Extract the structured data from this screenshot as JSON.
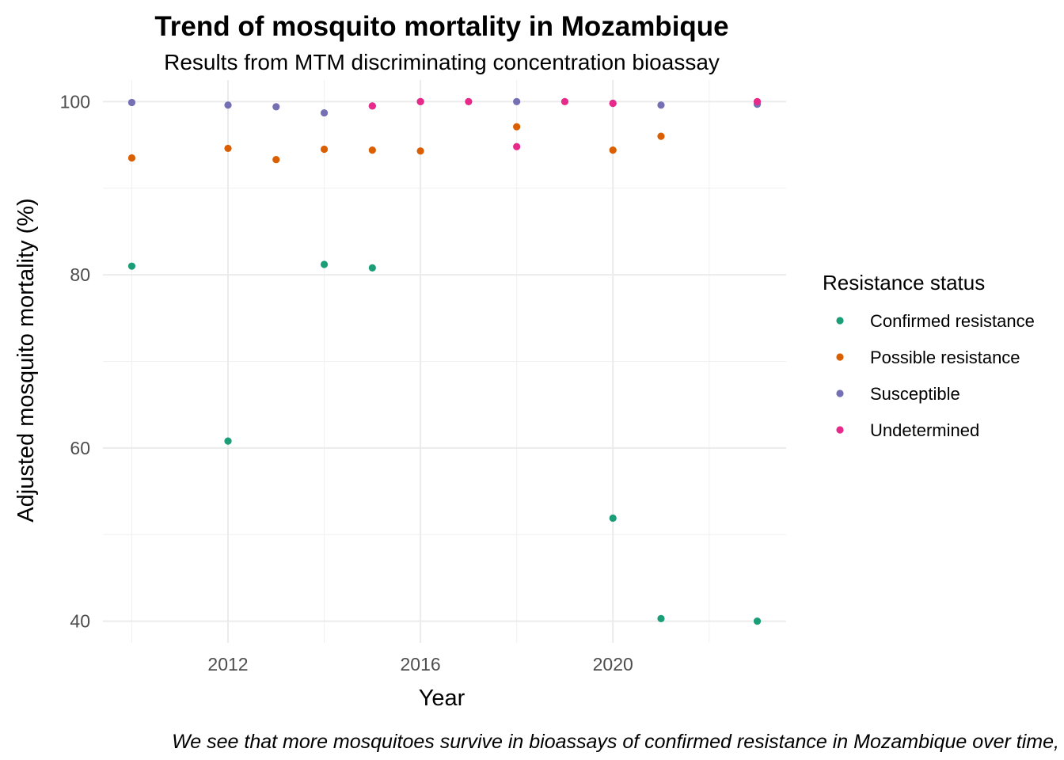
{
  "chart_data": {
    "type": "scatter",
    "title": "Trend of mosquito mortality in Mozambique",
    "subtitle": "Results from MTM discriminating concentration bioassay",
    "xlabel": "Year",
    "ylabel": "Adjusted mosquito mortality (%)",
    "caption": "We see that more mosquitoes survive in bioassays of confirmed resistance in Mozambique over time,",
    "xlim": [
      2009.4,
      2023.6
    ],
    "ylim": [
      37.5,
      102.5
    ],
    "x_ticks": [
      2012,
      2016,
      2020
    ],
    "y_ticks": [
      40,
      60,
      80,
      100
    ],
    "grid": true,
    "legend": {
      "title": "Resistance status",
      "position": "right"
    },
    "series": [
      {
        "name": "Confirmed resistance",
        "color": "#1B9E77",
        "points": [
          {
            "x": 2010,
            "y": 81.0
          },
          {
            "x": 2012,
            "y": 60.8
          },
          {
            "x": 2014,
            "y": 81.2
          },
          {
            "x": 2015,
            "y": 80.8
          },
          {
            "x": 2020,
            "y": 51.9
          },
          {
            "x": 2021,
            "y": 40.3
          },
          {
            "x": 2023,
            "y": 40.0
          }
        ]
      },
      {
        "name": "Possible resistance",
        "color": "#D95F02",
        "points": [
          {
            "x": 2010,
            "y": 93.5
          },
          {
            "x": 2012,
            "y": 94.6
          },
          {
            "x": 2013,
            "y": 93.3
          },
          {
            "x": 2014,
            "y": 94.5
          },
          {
            "x": 2015,
            "y": 94.4
          },
          {
            "x": 2016,
            "y": 94.3
          },
          {
            "x": 2018,
            "y": 97.1
          },
          {
            "x": 2020,
            "y": 94.4
          },
          {
            "x": 2021,
            "y": 96.0
          }
        ]
      },
      {
        "name": "Susceptible",
        "color": "#7570B3",
        "points": [
          {
            "x": 2010,
            "y": 99.9
          },
          {
            "x": 2012,
            "y": 99.6
          },
          {
            "x": 2013,
            "y": 99.4
          },
          {
            "x": 2014,
            "y": 98.7
          },
          {
            "x": 2015,
            "y": 99.5
          },
          {
            "x": 2016,
            "y": 100.0
          },
          {
            "x": 2018,
            "y": 100.0
          },
          {
            "x": 2020,
            "y": 99.8
          },
          {
            "x": 2021,
            "y": 99.6
          },
          {
            "x": 2023,
            "y": 99.7
          }
        ]
      },
      {
        "name": "Undetermined",
        "color": "#E7298A",
        "points": [
          {
            "x": 2015,
            "y": 99.5
          },
          {
            "x": 2016,
            "y": 100.0
          },
          {
            "x": 2017,
            "y": 100.0
          },
          {
            "x": 2018,
            "y": 94.8
          },
          {
            "x": 2019,
            "y": 100.0
          },
          {
            "x": 2020,
            "y": 99.8
          },
          {
            "x": 2023,
            "y": 100.0
          }
        ]
      }
    ]
  }
}
